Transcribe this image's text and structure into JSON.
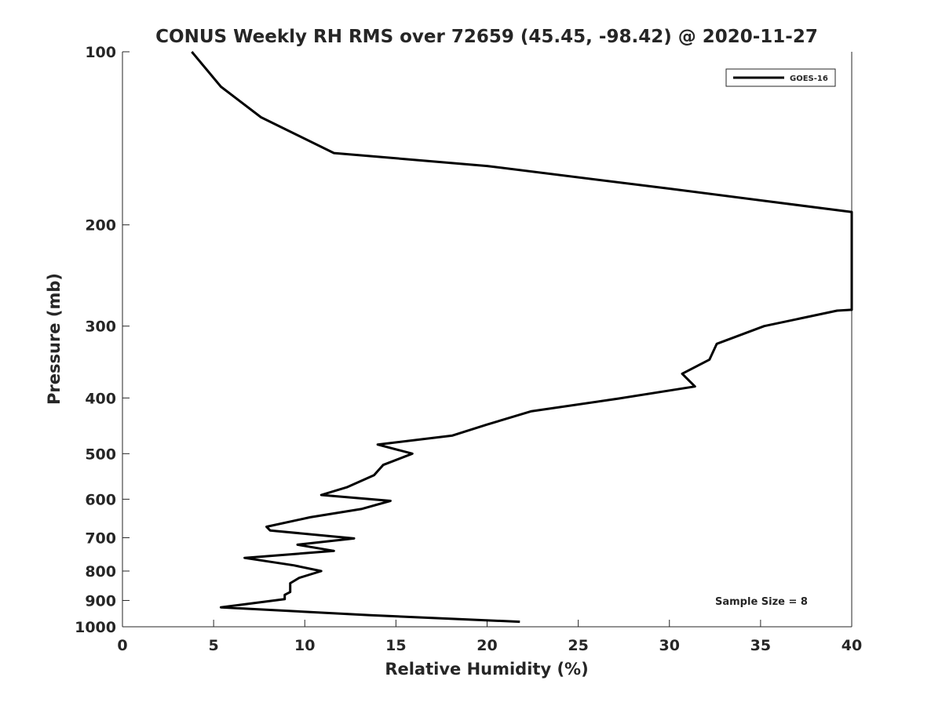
{
  "chart_data": {
    "type": "line",
    "title": "CONUS Weekly RH RMS over 72659 (45.45, -98.42) @ 2020-11-27",
    "xlabel": "Relative Humidity (%)",
    "ylabel": "Pressure (mb)",
    "xlim": [
      0,
      40
    ],
    "ylim": [
      100,
      1000
    ],
    "yscale": "log",
    "y_reversed": true,
    "grid": false,
    "legend_position": "top-right",
    "x_ticks": [
      "0",
      "5",
      "10",
      "15",
      "20",
      "25",
      "30",
      "35",
      "40"
    ],
    "y_ticks": [
      "100",
      "200",
      "300",
      "400",
      "500",
      "600",
      "700",
      "800",
      "900",
      "1000"
    ],
    "annotation": "Sample Size = 8",
    "series": [
      {
        "name": "GOES-16",
        "color": "#000000",
        "points": [
          [
            3.8,
            100
          ],
          [
            5.4,
            115
          ],
          [
            7.6,
            130
          ],
          [
            11.6,
            150
          ],
          [
            20,
            158
          ],
          [
            30,
            173
          ],
          [
            40,
            190
          ],
          [
            40,
            281
          ],
          [
            39.2,
            282
          ],
          [
            35.2,
            300
          ],
          [
            32.6,
            322
          ],
          [
            32.2,
            343
          ],
          [
            30.7,
            363
          ],
          [
            31.4,
            382
          ],
          [
            27.2,
            401
          ],
          [
            22.4,
            422
          ],
          [
            20,
            445
          ],
          [
            18.1,
            465
          ],
          [
            14.0,
            482
          ],
          [
            15.9,
            500
          ],
          [
            14.3,
            523
          ],
          [
            13.8,
            545
          ],
          [
            12.3,
            572
          ],
          [
            10.9,
            590
          ],
          [
            14.7,
            604
          ],
          [
            13.1,
            624
          ],
          [
            10.3,
            645
          ],
          [
            7.9,
            670
          ],
          [
            8.1,
            680
          ],
          [
            12.7,
            702
          ],
          [
            9.6,
            720
          ],
          [
            11.6,
            738
          ],
          [
            6.7,
            759
          ],
          [
            9.4,
            782
          ],
          [
            10.9,
            800
          ],
          [
            9.7,
            822
          ],
          [
            9.2,
            840
          ],
          [
            9.2,
            855
          ],
          [
            9.2,
            870
          ],
          [
            8.9,
            880
          ],
          [
            8.9,
            895
          ],
          [
            5.4,
            925
          ],
          [
            13.6,
            955
          ],
          [
            21.8,
            980
          ]
        ]
      }
    ]
  }
}
